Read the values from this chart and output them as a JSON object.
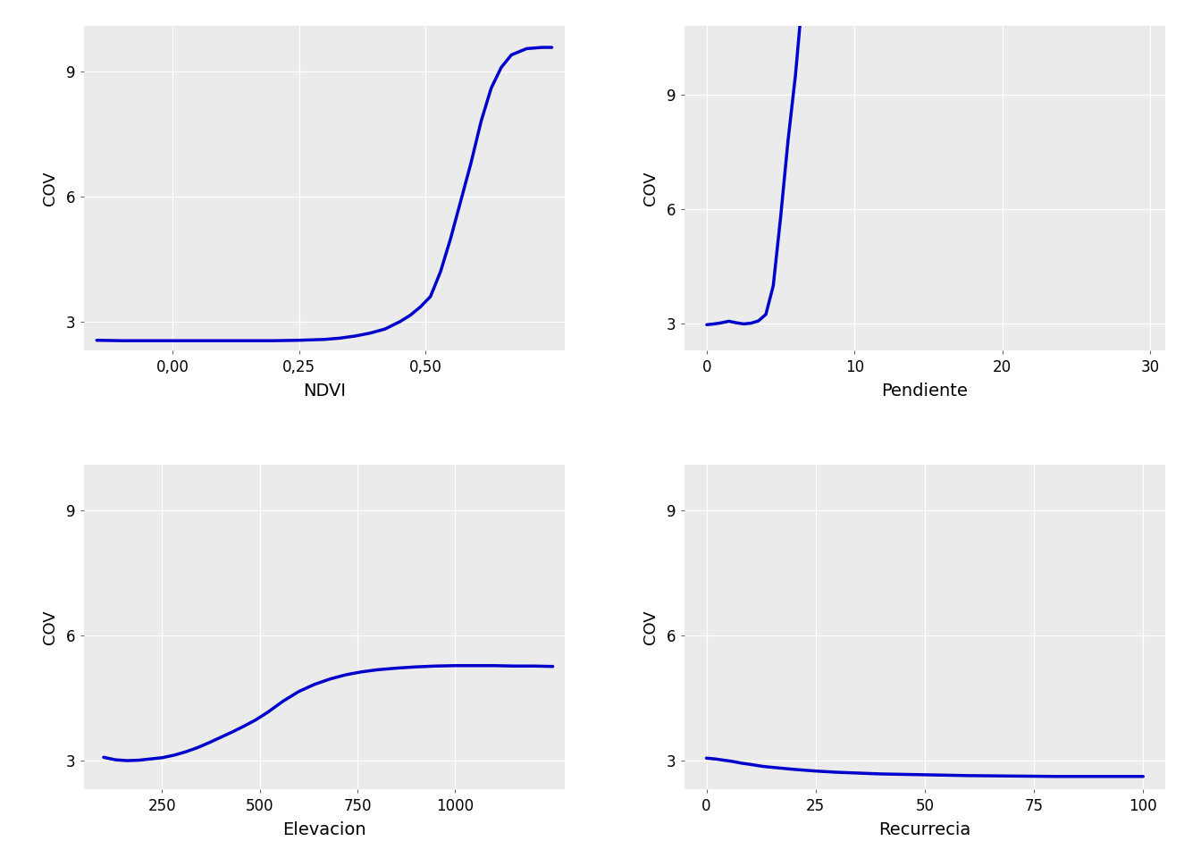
{
  "background_color": "#EBEBEB",
  "line_color": "#0000CC",
  "line_width": 2.5,
  "ylabel": "COV",
  "yticks": [
    3,
    6,
    9
  ],
  "fig_bg": "#FFFFFF",
  "plots": [
    {
      "xlabel": "NDVI",
      "xlim": [
        -0.175,
        0.775
      ],
      "ylim": [
        2.3,
        10.1
      ],
      "xticks": [
        0.0,
        0.25,
        0.5
      ],
      "xticklabels": [
        "0,00",
        "0,25",
        "0,50"
      ],
      "x": [
        -0.15,
        -0.1,
        -0.05,
        0.0,
        0.05,
        0.1,
        0.15,
        0.2,
        0.25,
        0.3,
        0.33,
        0.36,
        0.39,
        0.42,
        0.45,
        0.47,
        0.49,
        0.51,
        0.53,
        0.55,
        0.57,
        0.59,
        0.61,
        0.63,
        0.65,
        0.67,
        0.7,
        0.73,
        0.75
      ],
      "y": [
        2.55,
        2.54,
        2.54,
        2.54,
        2.54,
        2.54,
        2.54,
        2.54,
        2.55,
        2.57,
        2.6,
        2.65,
        2.72,
        2.82,
        3.0,
        3.15,
        3.35,
        3.6,
        4.2,
        5.0,
        5.9,
        6.8,
        7.8,
        8.6,
        9.1,
        9.4,
        9.55,
        9.58,
        9.58
      ]
    },
    {
      "xlabel": "Pendiente",
      "xlim": [
        -1.5,
        31
      ],
      "ylim": [
        2.3,
        10.8
      ],
      "xticks": [
        0,
        10,
        20,
        30
      ],
      "xticklabels": [
        "0",
        "10",
        "20",
        "30"
      ],
      "x": [
        0.0,
        0.5,
        1.0,
        1.5,
        2.0,
        2.5,
        3.0,
        3.5,
        4.0,
        4.5,
        5.0,
        5.5,
        6.0,
        6.3
      ],
      "y": [
        2.98,
        3.0,
        3.03,
        3.07,
        3.03,
        3.0,
        3.02,
        3.08,
        3.25,
        4.0,
        5.8,
        7.8,
        9.5,
        10.8
      ]
    },
    {
      "xlabel": "Elevacion",
      "xlim": [
        50,
        1280
      ],
      "ylim": [
        2.3,
        10.1
      ],
      "xticks": [
        250,
        500,
        750,
        1000
      ],
      "xticklabels": [
        "250",
        "500",
        "750",
        "1000"
      ],
      "x": [
        100,
        130,
        160,
        190,
        220,
        250,
        280,
        310,
        340,
        370,
        400,
        430,
        460,
        490,
        520,
        560,
        600,
        640,
        680,
        720,
        760,
        800,
        850,
        900,
        950,
        1000,
        1050,
        1100,
        1150,
        1200,
        1250
      ],
      "y": [
        3.07,
        3.01,
        2.99,
        3.0,
        3.03,
        3.06,
        3.12,
        3.2,
        3.3,
        3.42,
        3.55,
        3.68,
        3.82,
        3.97,
        4.15,
        4.42,
        4.65,
        4.82,
        4.95,
        5.05,
        5.12,
        5.17,
        5.21,
        5.24,
        5.26,
        5.27,
        5.27,
        5.27,
        5.26,
        5.26,
        5.25
      ]
    },
    {
      "xlabel": "Recurrecia",
      "xlim": [
        -5,
        105
      ],
      "ylim": [
        2.3,
        10.1
      ],
      "xticks": [
        0,
        25,
        50,
        75,
        100
      ],
      "xticklabels": [
        "0",
        "25",
        "50",
        "75",
        "100"
      ],
      "x": [
        0,
        2,
        4,
        6,
        8,
        10,
        13,
        16,
        20,
        25,
        30,
        35,
        40,
        45,
        50,
        55,
        60,
        70,
        80,
        90,
        100
      ],
      "y": [
        3.05,
        3.03,
        3.0,
        2.97,
        2.93,
        2.9,
        2.85,
        2.82,
        2.78,
        2.74,
        2.71,
        2.69,
        2.67,
        2.66,
        2.65,
        2.64,
        2.63,
        2.62,
        2.61,
        2.61,
        2.61
      ]
    }
  ]
}
